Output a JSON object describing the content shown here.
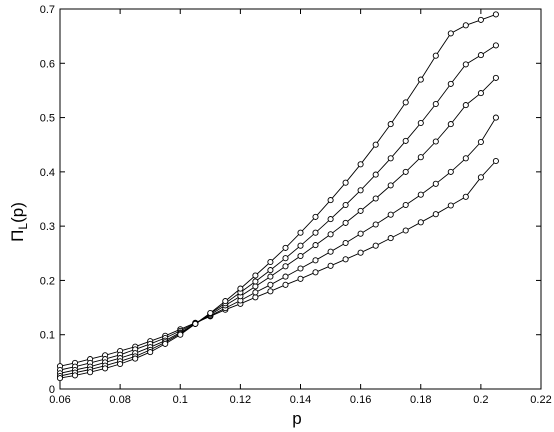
{
  "chart_data": {
    "type": "line",
    "title": "",
    "xlabel": "p",
    "ylabel": {
      "main": "Π",
      "subscript": "L",
      "suffix": "(p)"
    },
    "xlim": [
      0.06,
      0.22
    ],
    "ylim": [
      0,
      0.7
    ],
    "xticks": [
      0.06,
      0.08,
      0.1,
      0.12,
      0.14,
      0.16,
      0.18,
      0.2,
      0.22
    ],
    "xtick_labels": [
      "0.06",
      "0.08",
      "0.1",
      "0.12",
      "0.14",
      "0.16",
      "0.18",
      "0.2",
      "0.22"
    ],
    "yticks": [
      0,
      0.1,
      0.2,
      0.3,
      0.4,
      0.5,
      0.6,
      0.7
    ],
    "ytick_labels": [
      "0",
      "0.1",
      "0.2",
      "0.3",
      "0.4",
      "0.5",
      "0.6",
      "0.7"
    ],
    "grid": false,
    "marker": "open-circle",
    "line_color": "#000000",
    "x": [
      0.06,
      0.065,
      0.07,
      0.075,
      0.08,
      0.085,
      0.09,
      0.095,
      0.1,
      0.105,
      0.11,
      0.115,
      0.12,
      0.125,
      0.13,
      0.135,
      0.14,
      0.145,
      0.15,
      0.155,
      0.16,
      0.165,
      0.17,
      0.175,
      0.18,
      0.185,
      0.19,
      0.195,
      0.2,
      0.205
    ],
    "series": [
      {
        "values": [
          0.042,
          0.048,
          0.055,
          0.062,
          0.07,
          0.078,
          0.088,
          0.098,
          0.11,
          0.122,
          0.134,
          0.146,
          0.157,
          0.169,
          0.18,
          0.192,
          0.203,
          0.215,
          0.227,
          0.239,
          0.251,
          0.264,
          0.278,
          0.292,
          0.307,
          0.322,
          0.338,
          0.354,
          0.39,
          0.42
        ]
      },
      {
        "values": [
          0.035,
          0.041,
          0.048,
          0.055,
          0.063,
          0.073,
          0.083,
          0.094,
          0.107,
          0.121,
          0.135,
          0.149,
          0.163,
          0.178,
          0.192,
          0.207,
          0.222,
          0.237,
          0.253,
          0.269,
          0.286,
          0.303,
          0.321,
          0.339,
          0.358,
          0.378,
          0.4,
          0.425,
          0.455,
          0.5
        ]
      },
      {
        "values": [
          0.029,
          0.035,
          0.041,
          0.049,
          0.057,
          0.066,
          0.077,
          0.089,
          0.104,
          0.12,
          0.137,
          0.154,
          0.171,
          0.189,
          0.207,
          0.226,
          0.245,
          0.265,
          0.285,
          0.306,
          0.328,
          0.351,
          0.375,
          0.4,
          0.427,
          0.456,
          0.488,
          0.523,
          0.545,
          0.573
        ]
      },
      {
        "values": [
          0.024,
          0.03,
          0.036,
          0.043,
          0.051,
          0.06,
          0.072,
          0.086,
          0.102,
          0.12,
          0.139,
          0.158,
          0.178,
          0.198,
          0.219,
          0.241,
          0.264,
          0.288,
          0.313,
          0.339,
          0.366,
          0.395,
          0.425,
          0.457,
          0.49,
          0.525,
          0.562,
          0.598,
          0.615,
          0.633
        ]
      },
      {
        "values": [
          0.02,
          0.025,
          0.031,
          0.038,
          0.046,
          0.056,
          0.068,
          0.083,
          0.1,
          0.12,
          0.14,
          0.162,
          0.185,
          0.209,
          0.234,
          0.26,
          0.288,
          0.317,
          0.348,
          0.38,
          0.414,
          0.45,
          0.488,
          0.528,
          0.57,
          0.614,
          0.655,
          0.67,
          0.68,
          0.69
        ]
      }
    ]
  }
}
